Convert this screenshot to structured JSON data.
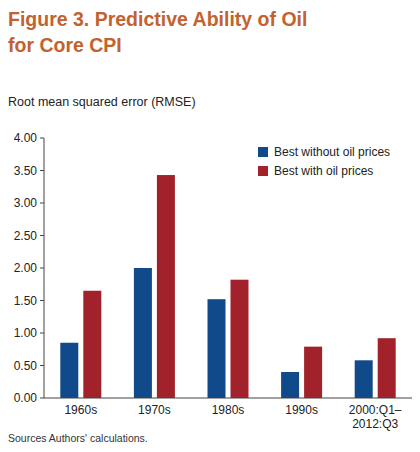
{
  "chart_data": {
    "type": "bar",
    "title": "Figure 3. Predictive Ability of Oil for Core CPI",
    "subtitle": "Root mean squared error (RMSE)",
    "source": "Sources Authors' calculations.",
    "categories": [
      "1960s",
      "1970s",
      "1980s",
      "1990s",
      "2000:Q1–2012:Q3"
    ],
    "series": [
      {
        "name": "Best without oil prices",
        "color": "#114a8b",
        "values": [
          0.85,
          2.0,
          1.52,
          0.4,
          0.58
        ]
      },
      {
        "name": "Best with oil prices",
        "color": "#a2222b",
        "values": [
          1.65,
          3.43,
          1.82,
          0.79,
          0.92
        ]
      }
    ],
    "ylim": [
      0,
      4
    ],
    "yticks": [
      {
        "value": 0,
        "label": "0.00"
      },
      {
        "value": 0.5,
        "label": "0.50"
      },
      {
        "value": 1,
        "label": "1.00"
      },
      {
        "value": 1.5,
        "label": "1.50"
      },
      {
        "value": 2,
        "label": "2.00"
      },
      {
        "value": 2.5,
        "label": "2.50"
      },
      {
        "value": 3,
        "label": "3.00"
      },
      {
        "value": 3.5,
        "label": "3.50"
      },
      {
        "value": 4,
        "label": "4.00"
      }
    ],
    "grid": false,
    "legend": "top-right"
  }
}
